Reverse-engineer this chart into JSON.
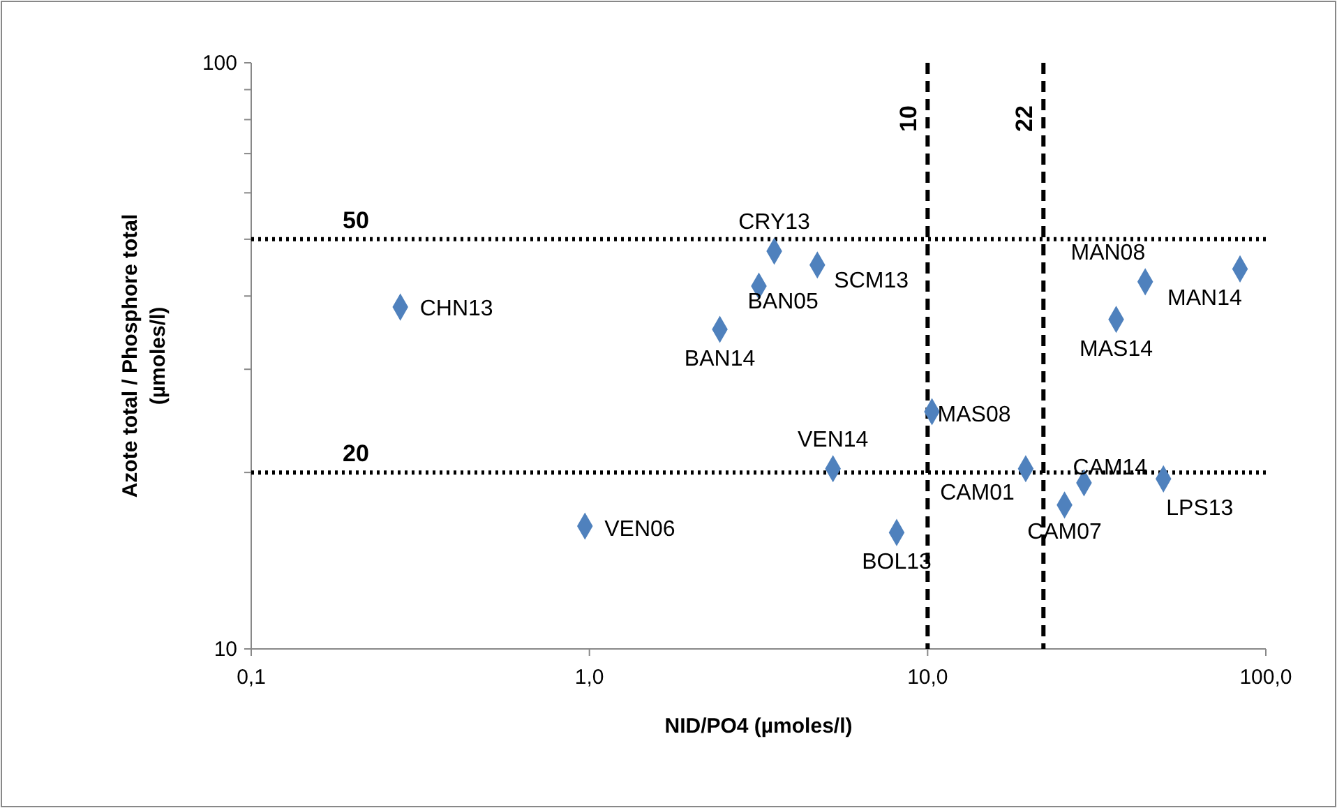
{
  "chart_data": {
    "type": "scatter",
    "xlabel": "NID/PO4 (µmoles/l)",
    "ylabel": "Azote total / Phosphore total (µmoles/l)",
    "log": "xy",
    "marker": "diamond",
    "grid": false,
    "xlim": [
      0.1,
      100
    ],
    "ylim": [
      10,
      100
    ],
    "xticks": [
      {
        "value": 0.1,
        "label": "0,1"
      },
      {
        "value": 1,
        "label": "1,0"
      },
      {
        "value": 10,
        "label": "10,0"
      },
      {
        "value": 100,
        "label": "100,0"
      }
    ],
    "yticks": [
      10,
      {
        "value": 20,
        "label": null
      },
      {
        "value": 30,
        "label": null
      },
      {
        "value": 40,
        "label": null
      },
      {
        "value": 50,
        "label": null
      },
      {
        "value": 60,
        "label": null
      },
      {
        "value": 70,
        "label": null
      },
      {
        "value": 80,
        "label": null
      },
      {
        "value": 90,
        "label": null
      },
      100
    ],
    "series": [
      {
        "color": "#4f81bd",
        "x": [
          0.276,
          0.97,
          2.43,
          3.17,
          3.52,
          4.72,
          5.25,
          8.1,
          10.3,
          19.5,
          25.4,
          29.0,
          49.8,
          36.1,
          44,
          83.9
        ],
        "values": [
          38.3,
          16.2,
          35.1,
          41.6,
          47.7,
          45.2,
          20.3,
          15.8,
          25.4,
          20.3,
          17.6,
          19.2,
          19.5,
          36.5,
          42.3,
          44.5
        ]
      }
    ],
    "ref_lines": [
      {
        "axis": "y",
        "value": 50,
        "label": "50",
        "line_style": "dotted",
        "color": "#000000"
      },
      {
        "axis": "y",
        "value": 20,
        "label": "20",
        "line_style": "dotted",
        "color": "#000000"
      },
      {
        "axis": "x",
        "value": 10,
        "label": "10",
        "line_style": "dashed",
        "color": "#000000"
      },
      {
        "axis": "x",
        "value": 22,
        "label": "22",
        "line_style": "dashed",
        "color": "#000000"
      }
    ],
    "annotations": [
      {
        "text": "CHN13",
        "x": 0.276,
        "y": 38.3
      },
      {
        "text": "VEN06",
        "x": 0.97,
        "y": 16.2
      },
      {
        "text": "BAN14",
        "x": 2.43,
        "y": 35.1
      },
      {
        "text": "BAN05",
        "x": 3.17,
        "y": 41.6
      },
      {
        "text": "CRY13",
        "x": 3.52,
        "y": 47.7
      },
      {
        "text": "SCM13",
        "x": 4.72,
        "y": 45.2
      },
      {
        "text": "VEN14",
        "x": 5.25,
        "y": 20.3
      },
      {
        "text": "BOL13",
        "x": 8.1,
        "y": 15.8
      },
      {
        "text": "MAS08",
        "x": 10.3,
        "y": 25.4
      },
      {
        "text": "CAM01",
        "x": 19.5,
        "y": 20.3
      },
      {
        "text": "CAM07",
        "x": 25.4,
        "y": 17.6
      },
      {
        "text": "CAM14",
        "x": 29.0,
        "y": 19.2
      },
      {
        "text": "LPS13",
        "x": 49.8,
        "y": 19.5
      },
      {
        "text": "MAS14",
        "x": 36.1,
        "y": 36.5
      },
      {
        "text": "MAN08",
        "x": 44,
        "y": 42.3
      },
      {
        "text": "MAN14",
        "x": 83.9,
        "y": 44.5
      }
    ]
  }
}
